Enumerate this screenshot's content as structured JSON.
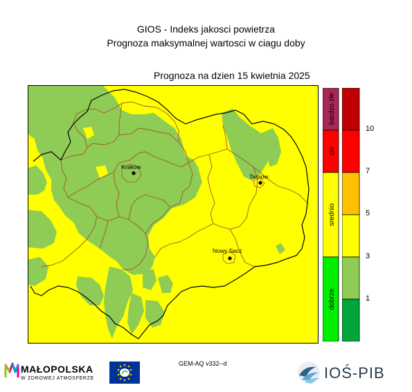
{
  "header": {
    "line1": "GIOS - Indeks jakosci powietrza",
    "line2": "Prognoza maksymalnej wartosci w ciagu doby",
    "date_line": "Prognoza na dzien  15 kwietnia 2025"
  },
  "map": {
    "cities": [
      {
        "name": "Krakow"
      },
      {
        "name": "Tarnow"
      },
      {
        "name": "Nowy Sacz"
      }
    ],
    "colors": {
      "background_class": "#ffff00",
      "clean_area": "#8ecc55",
      "borders": "#a0522d",
      "outer_border": "#000000"
    }
  },
  "legend": {
    "categories": [
      {
        "label": "bardzo złe",
        "color": "#a8285a"
      },
      {
        "label": "złe",
        "color": "#ff0000"
      },
      {
        "label": "srednio",
        "color": "#ffff00"
      },
      {
        "label": "dobrze",
        "color": "#00ee00"
      }
    ],
    "scale": [
      {
        "color": "#c00000"
      },
      {
        "color": "#ff0000"
      },
      {
        "color": "#ffc000"
      },
      {
        "color": "#ffff00"
      },
      {
        "color": "#8ecc55"
      },
      {
        "color": "#00a63c"
      }
    ],
    "ticks": [
      "10",
      "7",
      "5",
      "3",
      "1"
    ]
  },
  "footer": {
    "model": "GEM-AQ v332--d",
    "malopolska_name": "MAŁOPOLSKA",
    "malopolska_sub": "W ZDROWEJ ATMOSFERZE",
    "ios_name": "IOŚ-PIB"
  }
}
